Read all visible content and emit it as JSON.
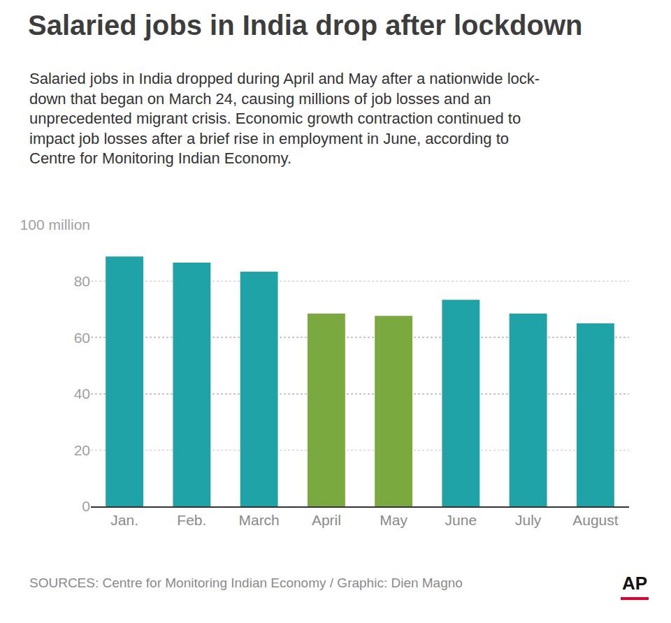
{
  "chart_data": {
    "type": "bar",
    "title": "Salaried jobs in India drop after lockdown",
    "subtitle": [
      "Salaried jobs in India dropped during April and May after a nationwide lock-",
      "down that began on March 24, causing millions of job losses and an",
      "unprecedented migrant crisis. Economic growth contraction continued to",
      "impact job losses after a brief rise in employment in June, according to",
      "Centre for Monitoring Indian Economy."
    ],
    "source": "SOURCES: Centre for Monitoring Indian Economy / Graphic: Dien Magno",
    "logo": "AP",
    "categories": [
      "Jan.",
      "Feb.",
      "March",
      "April",
      "May",
      "June",
      "July",
      "August"
    ],
    "values": [
      88.8,
      86.6,
      83.4,
      68.5,
      67.7,
      73.4,
      68.5,
      65.0
    ],
    "colors": [
      "#20a3a6",
      "#20a3a6",
      "#20a3a6",
      "#7aaa3f",
      "#7aaa3f",
      "#20a3a6",
      "#20a3a6",
      "#20a3a6"
    ],
    "ylim": [
      0,
      100
    ],
    "yticks": [
      0,
      20,
      40,
      60,
      80,
      {
        "value": 100,
        "label": "100 million"
      }
    ],
    "grid": true
  }
}
